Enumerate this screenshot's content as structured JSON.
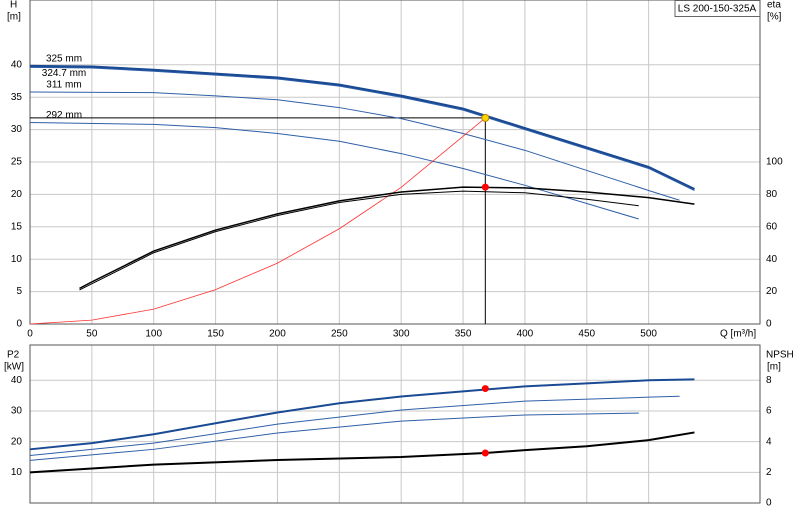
{
  "chart_data": [
    {
      "type": "line",
      "title": "LS 200-150-325A",
      "xlabel": "Q [m³/h]",
      "ylabel": "H",
      "yunit": "[m]",
      "y2label": "eta",
      "y2unit": "[%]",
      "xlim": [
        0,
        590
      ],
      "ylim": [
        0,
        50
      ],
      "y2lim": [
        0,
        200
      ],
      "xticks": [
        0,
        50,
        100,
        150,
        200,
        250,
        300,
        350,
        400,
        450,
        500
      ],
      "yticks": [
        0,
        5,
        10,
        15,
        20,
        25,
        30,
        35,
        40
      ],
      "y2ticks": [
        0,
        20,
        40,
        60,
        80,
        100
      ],
      "grid": true,
      "series": [
        {
          "name": "325 mm",
          "color": "#1a4a94",
          "width": 2.5,
          "axis": "y",
          "x": [
            0,
            50,
            100,
            150,
            200,
            250,
            300,
            350,
            400,
            450,
            500,
            537
          ],
          "values": [
            39.8,
            39.7,
            39.2,
            38.6,
            38.0,
            36.9,
            35.2,
            33.2,
            30.2,
            27.2,
            24.2,
            20.8
          ]
        },
        {
          "name": "324.7 mm",
          "color": "#2e5fa8",
          "width": 1,
          "axis": "y",
          "x": [
            0,
            50,
            100,
            150,
            200,
            250,
            300,
            350,
            400,
            450,
            500,
            537
          ],
          "values": [
            39.6,
            39.5,
            39.0,
            38.4,
            37.8,
            36.7,
            35.0,
            33.0,
            30.0,
            27.0,
            24.0,
            20.6
          ]
        },
        {
          "name": "311 mm",
          "color": "#2e5fa8",
          "width": 1,
          "axis": "y",
          "x": [
            0,
            100,
            150,
            200,
            250,
            300,
            350,
            400,
            450,
            500,
            525
          ],
          "values": [
            35.8,
            35.7,
            35.2,
            34.6,
            33.4,
            31.7,
            29.4,
            26.8,
            23.7,
            20.6,
            19.1
          ]
        },
        {
          "name": "292 mm",
          "color": "#2e5fa8",
          "width": 1,
          "axis": "y",
          "x": [
            0,
            100,
            150,
            200,
            250,
            300,
            350,
            400,
            450,
            492
          ],
          "values": [
            31.1,
            30.8,
            30.3,
            29.4,
            28.2,
            26.3,
            24.0,
            21.4,
            18.6,
            16.2
          ]
        },
        {
          "color": "#ff3030",
          "width": 0.8,
          "axis": "y",
          "x": [
            0,
            50,
            100,
            150,
            200,
            250,
            300,
            368
          ],
          "values": [
            0,
            0.6,
            2.3,
            5.3,
            9.4,
            14.7,
            21.1,
            31.8
          ]
        },
        {
          "color": "#000000",
          "width": 1.5,
          "axis": "y2",
          "x": [
            40,
            50,
            100,
            150,
            200,
            250,
            300,
            350,
            400,
            450,
            500,
            537
          ],
          "values": [
            22,
            26,
            45,
            58,
            68,
            76,
            81.5,
            84.5,
            84,
            81.5,
            78,
            74
          ]
        },
        {
          "color": "#000000",
          "width": 1,
          "axis": "y2",
          "x": [
            40,
            100,
            150,
            200,
            250,
            300,
            350,
            400,
            450,
            492
          ],
          "values": [
            21,
            44,
            57,
            67,
            75,
            80,
            82,
            81,
            77,
            73
          ]
        }
      ],
      "points": [
        {
          "x": 368,
          "y": 31.8,
          "axis": "y",
          "color": "#ffd700",
          "guides": true
        },
        {
          "x": 368,
          "y": 84.5,
          "axis": "y2",
          "color": "#ff0000"
        }
      ]
    },
    {
      "type": "line",
      "ylabel": "P2",
      "yunit": "[kW]",
      "y2label": "NPSH",
      "y2unit": "[m]",
      "xlim": [
        0,
        590
      ],
      "ylim": [
        0,
        51.5
      ],
      "y2lim": [
        0,
        10.3
      ],
      "xticks": [
        0,
        50,
        100,
        150,
        200,
        250,
        300,
        350,
        400,
        450,
        500
      ],
      "yticks": [
        10,
        20,
        30,
        40
      ],
      "y2ticks": [
        0,
        2,
        4,
        6,
        8
      ],
      "grid": true,
      "series": [
        {
          "color": "#1a4a94",
          "width": 2,
          "axis": "y",
          "x": [
            0,
            50,
            100,
            150,
            200,
            250,
            300,
            350,
            400,
            450,
            500,
            537
          ],
          "values": [
            17.5,
            19.5,
            22.4,
            26,
            29.5,
            32.5,
            34.7,
            36.4,
            38,
            39,
            40,
            40.3
          ]
        },
        {
          "color": "#2e5fa8",
          "width": 1,
          "axis": "y",
          "x": [
            0,
            100,
            200,
            300,
            400,
            500,
            525
          ],
          "values": [
            15.5,
            19.5,
            25.7,
            30.3,
            33.2,
            34.5,
            34.8
          ]
        },
        {
          "color": "#2e5fa8",
          "width": 1,
          "axis": "y",
          "x": [
            0,
            100,
            200,
            300,
            400,
            492
          ],
          "values": [
            13.9,
            17.5,
            22.8,
            26.7,
            28.7,
            29.3
          ]
        },
        {
          "color": "#000000",
          "width": 2,
          "axis": "y2",
          "x": [
            0,
            100,
            200,
            300,
            368,
            400,
            450,
            500,
            537
          ],
          "values": [
            2.0,
            2.5,
            2.8,
            3.0,
            3.26,
            3.45,
            3.7,
            4.1,
            4.6
          ]
        }
      ],
      "points": [
        {
          "x": 368,
          "y": 37.3,
          "axis": "y",
          "color": "#ff0000"
        },
        {
          "x": 368,
          "y": 3.26,
          "axis": "y2",
          "color": "#ff0000"
        }
      ]
    }
  ]
}
